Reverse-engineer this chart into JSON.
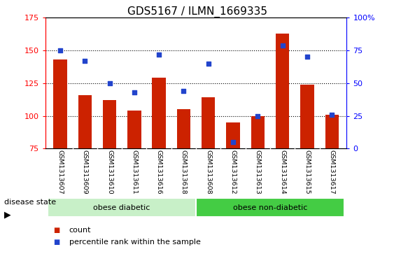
{
  "title": "GDS5167 / ILMN_1669335",
  "samples": [
    "GSM1313607",
    "GSM1313609",
    "GSM1313610",
    "GSM1313611",
    "GSM1313616",
    "GSM1313618",
    "GSM1313608",
    "GSM1313612",
    "GSM1313613",
    "GSM1313614",
    "GSM1313615",
    "GSM1313617"
  ],
  "counts": [
    143,
    116,
    112,
    104,
    129,
    105,
    114,
    95,
    100,
    163,
    124,
    101
  ],
  "percentile_ranks": [
    75,
    67,
    50,
    43,
    72,
    44,
    65,
    5,
    25,
    79,
    70,
    26
  ],
  "ymin": 75,
  "ymax": 175,
  "y2min": 0,
  "y2max": 100,
  "yticks": [
    75,
    100,
    125,
    150,
    175
  ],
  "y2ticks": [
    0,
    25,
    50,
    75,
    100
  ],
  "bar_color": "#cc2200",
  "dot_color": "#2244cc",
  "bar_width": 0.55,
  "groups": [
    {
      "label": "obese diabetic",
      "start": 0,
      "end": 6,
      "color": "#c8f0c8"
    },
    {
      "label": "obese non-diabetic",
      "start": 6,
      "end": 12,
      "color": "#44cc44"
    }
  ],
  "disease_state_label": "disease state",
  "legend": [
    {
      "label": "count",
      "color": "#cc2200"
    },
    {
      "label": "percentile rank within the sample",
      "color": "#2244cc"
    }
  ],
  "bg_color": "#ffffff",
  "tick_label_bg": "#cccccc",
  "title_fontsize": 11,
  "tick_fontsize": 8,
  "label_fontsize": 8
}
